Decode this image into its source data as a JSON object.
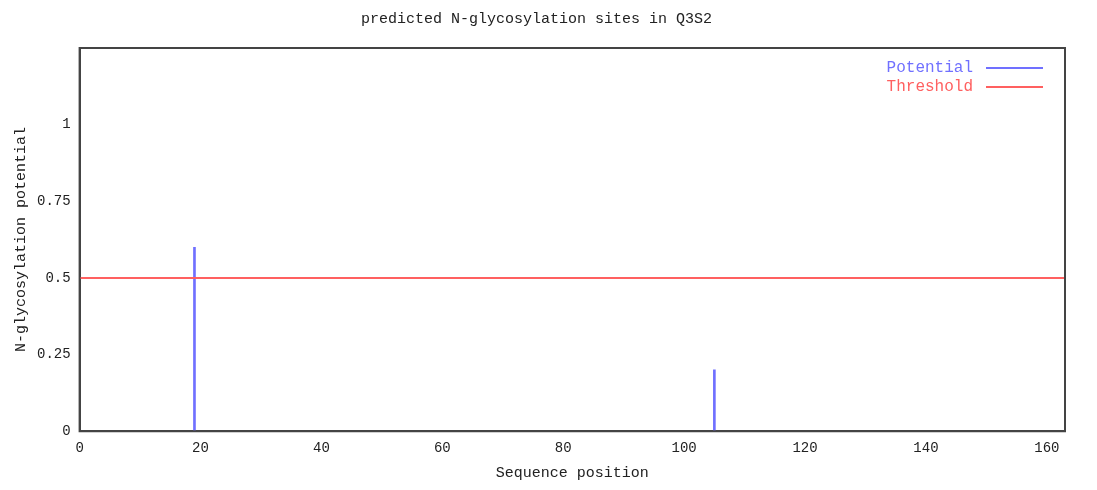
{
  "chart_data": {
    "type": "bar",
    "title": "predicted N-glycosylation sites in Q3S2",
    "xlabel": "Sequence position",
    "ylabel": "N-glycosylation potential",
    "x": [
      19,
      105
    ],
    "series": [
      {
        "name": "Potential",
        "color": "#7070ff",
        "values": [
          0.6,
          0.2
        ]
      }
    ],
    "ref_lines": [
      {
        "axis": "y",
        "value": 0.5,
        "label": "Threshold",
        "color": "#ff6060"
      }
    ],
    "xlim": [
      0,
      163
    ],
    "xticks": [
      0,
      20,
      40,
      60,
      80,
      100,
      120,
      140,
      160
    ],
    "ylim": [
      0,
      1.25
    ],
    "yticks": [
      0,
      0.25,
      0.5,
      0.75,
      1
    ],
    "grid": false,
    "legend": "top right"
  }
}
